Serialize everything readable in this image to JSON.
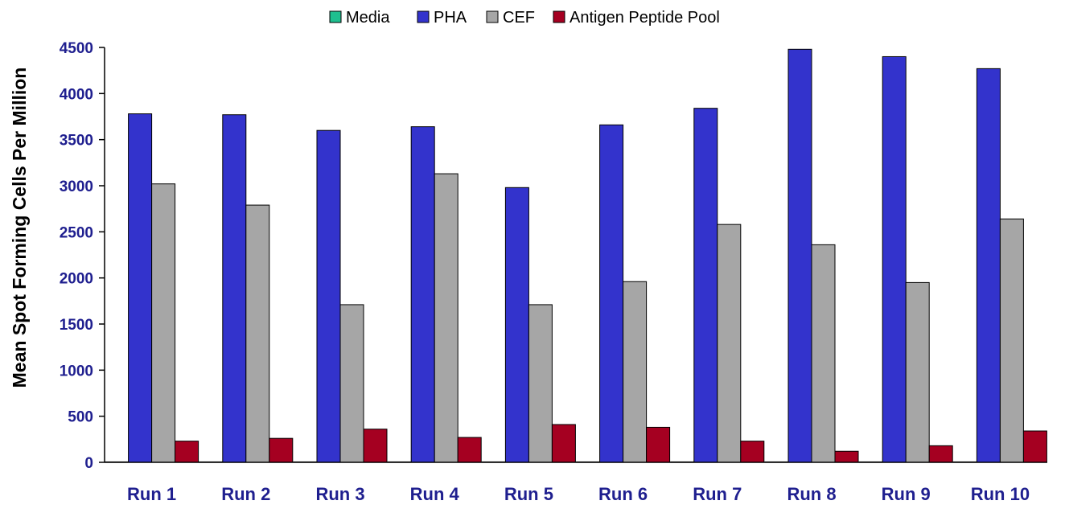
{
  "chart_data": {
    "type": "bar",
    "title": "",
    "xlabel": "",
    "ylabel": "Mean Spot Forming Cells  Per Million",
    "ylim": [
      0,
      4500
    ],
    "yticks": [
      0,
      500,
      1000,
      1500,
      2000,
      2500,
      3000,
      3500,
      4000,
      4500
    ],
    "categories": [
      "Run 1",
      "Run 2",
      "Run 3",
      "Run 4",
      "Run 5",
      "Run 6",
      "Run 7",
      "Run 8",
      "Run 9",
      "Run 10"
    ],
    "legend_position": "top",
    "grid": false,
    "series": [
      {
        "name": "Media",
        "color": "#1fbf8f",
        "values": [
          5,
          5,
          5,
          5,
          5,
          5,
          5,
          5,
          5,
          5
        ]
      },
      {
        "name": "PHA",
        "color": "#3333cc",
        "values": [
          3780,
          3770,
          3600,
          3640,
          2980,
          3660,
          3840,
          4480,
          4400,
          4270
        ]
      },
      {
        "name": "CEF",
        "color": "#a6a6a6",
        "values": [
          3020,
          2790,
          1710,
          3130,
          1710,
          1960,
          2580,
          2360,
          1950,
          2640
        ]
      },
      {
        "name": "Antigen Peptide Pool",
        "color": "#a50021",
        "values": [
          230,
          260,
          360,
          270,
          410,
          380,
          230,
          120,
          180,
          340
        ]
      }
    ]
  }
}
